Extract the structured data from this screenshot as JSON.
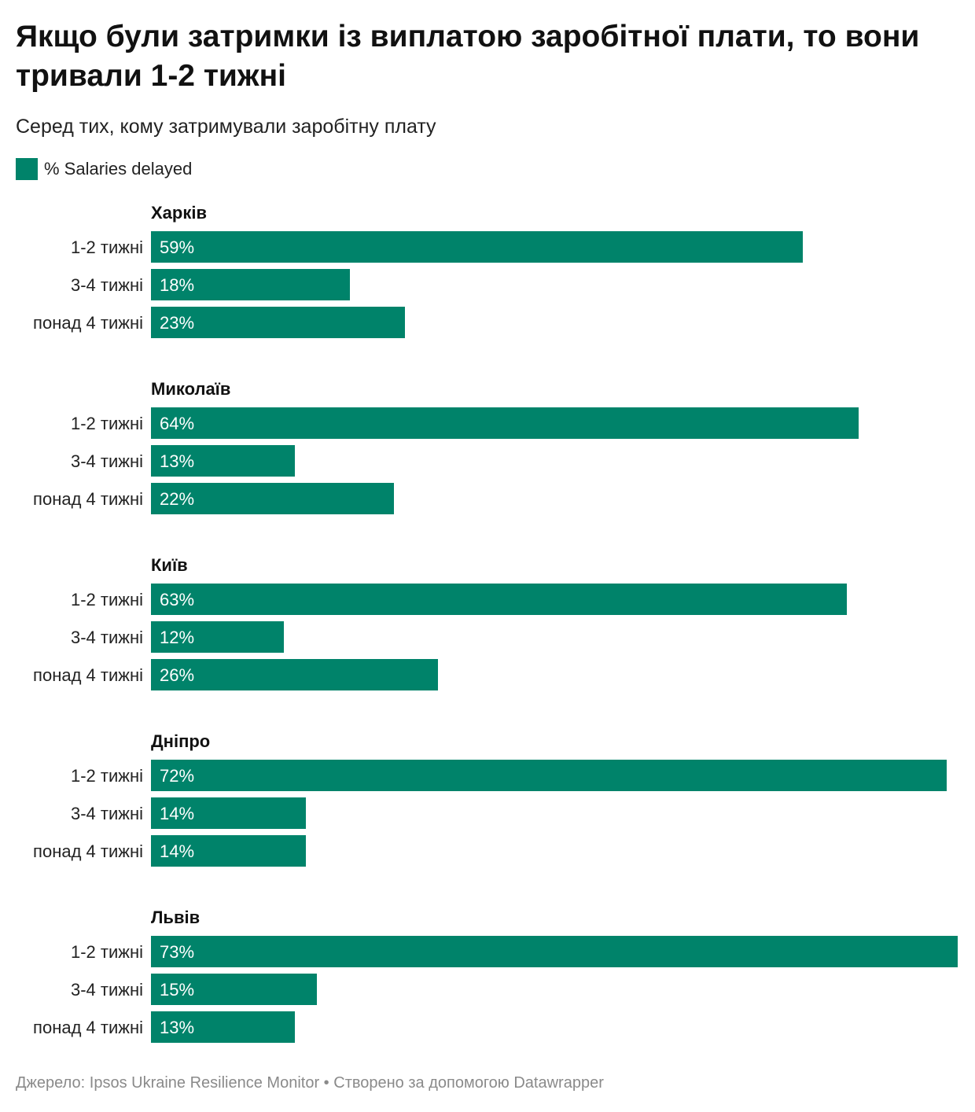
{
  "title": "Якщо були затримки із виплатою заробітної плати, то вони тривали 1-2 тижні",
  "subtitle": "Серед тих, кому затримували заробітну плату",
  "legend": {
    "label": "% Salaries delayed",
    "color": "#00836a"
  },
  "footer": {
    "source": "Джерело: Ipsos Ukraine Resilience Monitor",
    "separator": "•",
    "credit": "Створено за допомогою Datawrapper"
  },
  "chart_data": {
    "type": "bar",
    "orientation": "horizontal",
    "value_suffix": "%",
    "xlim": [
      0,
      73
    ],
    "categories": [
      "1-2 тижні",
      "3-4 тижні",
      "понад 4 тижні"
    ],
    "series": [
      {
        "name": "% Salaries delayed",
        "color": "#00836a"
      }
    ],
    "groups": [
      {
        "name": "Харків",
        "values": [
          59,
          18,
          23
        ]
      },
      {
        "name": "Миколаїв",
        "values": [
          64,
          13,
          22
        ]
      },
      {
        "name": "Київ",
        "values": [
          63,
          12,
          26
        ]
      },
      {
        "name": "Дніпро",
        "values": [
          72,
          14,
          14
        ]
      },
      {
        "name": "Львів",
        "values": [
          73,
          15,
          13
        ]
      }
    ]
  }
}
